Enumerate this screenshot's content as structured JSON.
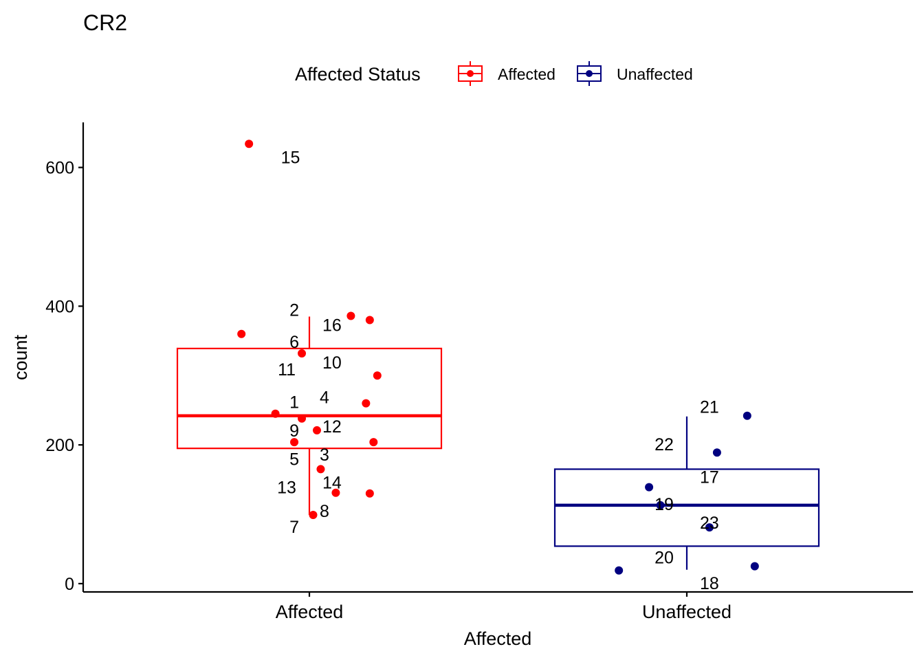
{
  "chart_data": {
    "type": "box",
    "title": "CR2",
    "xlabel": "Affected",
    "ylabel": "count",
    "ylim": [
      -12,
      665
    ],
    "y_ticks": [
      0,
      200,
      400,
      600
    ],
    "categories": [
      "Affected",
      "Unaffected"
    ],
    "legend": {
      "title": "Affected Status",
      "position": "top",
      "entries": [
        {
          "label": "Affected",
          "color": "#FF0000"
        },
        {
          "label": "Unaffected",
          "color": "#000080"
        }
      ]
    },
    "boxes": [
      {
        "category": "Affected",
        "color": "#FF0000",
        "whisker_low": 99,
        "q1": 195,
        "median": 242,
        "q3": 339,
        "whisker_high": 385
      },
      {
        "category": "Unaffected",
        "color": "#000080",
        "whisker_low": 20,
        "q1": 54,
        "median": 113,
        "q3": 165,
        "whisker_high": 241
      }
    ],
    "points": [
      {
        "group": "Affected",
        "x": -0.16,
        "y": 634
      },
      {
        "group": "Affected",
        "x": 0.11,
        "y": 386
      },
      {
        "group": "Affected",
        "x": 0.16,
        "y": 380
      },
      {
        "group": "Affected",
        "x": -0.18,
        "y": 360
      },
      {
        "group": "Affected",
        "x": -0.02,
        "y": 332
      },
      {
        "group": "Affected",
        "x": 0.18,
        "y": 300
      },
      {
        "group": "Affected",
        "x": 0.15,
        "y": 260
      },
      {
        "group": "Affected",
        "x": -0.09,
        "y": 245
      },
      {
        "group": "Affected",
        "x": -0.02,
        "y": 238
      },
      {
        "group": "Affected",
        "x": 0.02,
        "y": 221
      },
      {
        "group": "Affected",
        "x": -0.04,
        "y": 204
      },
      {
        "group": "Affected",
        "x": 0.17,
        "y": 204
      },
      {
        "group": "Affected",
        "x": 0.03,
        "y": 165
      },
      {
        "group": "Affected",
        "x": 0.07,
        "y": 131
      },
      {
        "group": "Affected",
        "x": 0.16,
        "y": 130
      },
      {
        "group": "Affected",
        "x": 0.01,
        "y": 99
      },
      {
        "group": "Unaffected",
        "x": 0.16,
        "y": 242
      },
      {
        "group": "Unaffected",
        "x": 0.08,
        "y": 189
      },
      {
        "group": "Unaffected",
        "x": -0.1,
        "y": 139
      },
      {
        "group": "Unaffected",
        "x": -0.07,
        "y": 113
      },
      {
        "group": "Unaffected",
        "x": 0.06,
        "y": 81
      },
      {
        "group": "Unaffected",
        "x": 0.18,
        "y": 25
      },
      {
        "group": "Unaffected",
        "x": -0.18,
        "y": 19
      }
    ],
    "labels": [
      {
        "text": "15",
        "x": -0.05,
        "y": 615
      },
      {
        "text": "2",
        "x": -0.04,
        "y": 395
      },
      {
        "text": "16",
        "x": 0.06,
        "y": 373
      },
      {
        "text": "6",
        "x": -0.04,
        "y": 349
      },
      {
        "text": "10",
        "x": 0.06,
        "y": 319
      },
      {
        "text": "11",
        "x": -0.06,
        "y": 309
      },
      {
        "text": "4",
        "x": 0.04,
        "y": 269
      },
      {
        "text": "1",
        "x": -0.04,
        "y": 262
      },
      {
        "text": "12",
        "x": 0.06,
        "y": 227
      },
      {
        "text": "9",
        "x": -0.04,
        "y": 221
      },
      {
        "text": "3",
        "x": 0.04,
        "y": 186
      },
      {
        "text": "5",
        "x": -0.04,
        "y": 180
      },
      {
        "text": "14",
        "x": 0.06,
        "y": 146
      },
      {
        "text": "13",
        "x": -0.06,
        "y": 139
      },
      {
        "text": "8",
        "x": 0.04,
        "y": 105
      },
      {
        "text": "7",
        "x": -0.04,
        "y": 82
      },
      {
        "text": "21",
        "x": 0.06,
        "y": 255
      },
      {
        "text": "22",
        "x": -0.06,
        "y": 201
      },
      {
        "text": "17",
        "x": 0.06,
        "y": 154
      },
      {
        "text": "19",
        "x": -0.06,
        "y": 115
      },
      {
        "text": "23",
        "x": 0.06,
        "y": 88
      },
      {
        "text": "20",
        "x": -0.06,
        "y": 38
      },
      {
        "text": "18",
        "x": 0.06,
        "y": 1
      }
    ]
  }
}
